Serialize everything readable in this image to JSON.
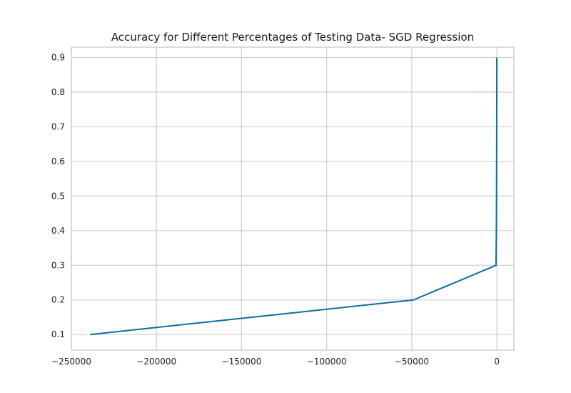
{
  "chart_data": {
    "type": "line",
    "title": "Accuracy for Different Percentages of Testing Data- SGD Regression",
    "xlabel": "",
    "ylabel": "",
    "xlim": [
      -250000,
      10000
    ],
    "ylim": [
      0.055,
      0.93
    ],
    "grid": true,
    "x_ticks": [
      -250000,
      -200000,
      -150000,
      -100000,
      -50000,
      0
    ],
    "x_tick_labels": [
      "−250000",
      "−200000",
      "−150000",
      "−100000",
      "−50000",
      "0"
    ],
    "y_ticks": [
      0.1,
      0.2,
      0.3,
      0.4,
      0.5,
      0.6,
      0.7,
      0.8,
      0.9
    ],
    "y_tick_labels": [
      "0.1",
      "0.2",
      "0.3",
      "0.4",
      "0.5",
      "0.6",
      "0.7",
      "0.8",
      "0.9"
    ],
    "series": [
      {
        "x": [
          -239000,
          -49000,
          -500,
          -300,
          -200,
          -150,
          -100,
          -60,
          -30
        ],
        "y": [
          0.1,
          0.2,
          0.3,
          0.4,
          0.5,
          0.6,
          0.7,
          0.8,
          0.9
        ],
        "color": "#0a6fa0"
      }
    ]
  },
  "colors": {
    "grid": "#cfcfcf",
    "axes": "#cfcfcf",
    "line": "#0a6fa0"
  }
}
